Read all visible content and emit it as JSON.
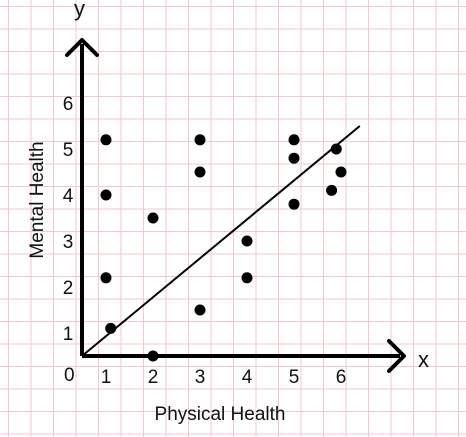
{
  "chart_data": {
    "type": "scatter",
    "title": "",
    "xlabel": "Physical Health",
    "ylabel": "Mental Health",
    "x_axis_name": "x",
    "y_axis_name": "y",
    "origin_label": "0",
    "xlim": [
      0,
      7
    ],
    "ylim": [
      0,
      7
    ],
    "x_ticks": [
      "1",
      "2",
      "3",
      "4",
      "5",
      "6"
    ],
    "y_ticks": [
      "1",
      "2",
      "3",
      "4",
      "5",
      "6"
    ],
    "grid": true,
    "points": [
      {
        "x": 1.0,
        "y": 5.2
      },
      {
        "x": 1.0,
        "y": 4.0
      },
      {
        "x": 1.0,
        "y": 2.2
      },
      {
        "x": 1.1,
        "y": 1.1
      },
      {
        "x": 2.0,
        "y": 3.5
      },
      {
        "x": 2.0,
        "y": 0.5
      },
      {
        "x": 3.0,
        "y": 5.2
      },
      {
        "x": 3.0,
        "y": 4.5
      },
      {
        "x": 3.0,
        "y": 1.5
      },
      {
        "x": 4.0,
        "y": 3.0
      },
      {
        "x": 4.0,
        "y": 2.2
      },
      {
        "x": 5.0,
        "y": 5.2
      },
      {
        "x": 5.0,
        "y": 4.8
      },
      {
        "x": 5.0,
        "y": 3.8
      },
      {
        "x": 5.8,
        "y": 4.1
      },
      {
        "x": 5.9,
        "y": 5.0
      },
      {
        "x": 6.0,
        "y": 4.5
      }
    ],
    "trend_line": {
      "x1": 0.0,
      "y1": 0.0,
      "x2": 6.4,
      "y2": 5.5
    }
  }
}
